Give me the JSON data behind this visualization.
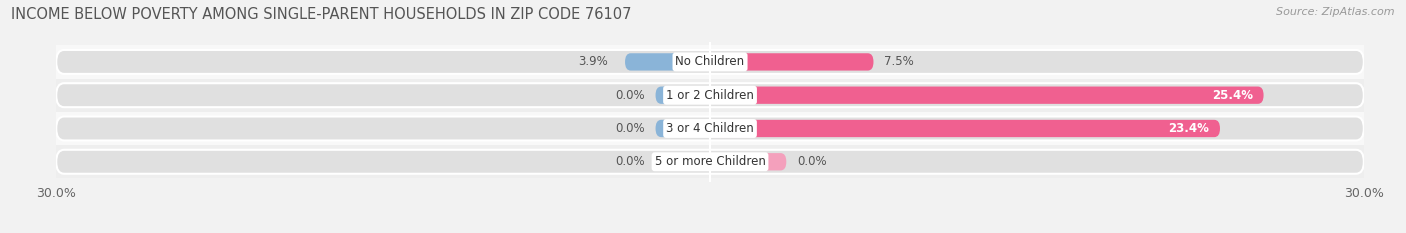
{
  "title": "INCOME BELOW POVERTY AMONG SINGLE-PARENT HOUSEHOLDS IN ZIP CODE 76107",
  "source": "Source: ZipAtlas.com",
  "categories": [
    "No Children",
    "1 or 2 Children",
    "3 or 4 Children",
    "5 or more Children"
  ],
  "single_father": [
    3.9,
    0.0,
    0.0,
    0.0
  ],
  "single_mother": [
    7.5,
    25.4,
    23.4,
    0.0
  ],
  "father_color": "#8ab4d8",
  "mother_color": "#f06090",
  "mother_color_light": "#f4a0bc",
  "bar_height": 0.52,
  "bg_bar_height": 0.72,
  "xlim": 30.0,
  "bg_color": "#f2f2f2",
  "bar_bg_color": "#e0e0e0",
  "row_bg_light": "#f8f8f8",
  "row_bg_dark": "#eeeeee",
  "title_fontsize": 10.5,
  "source_fontsize": 8,
  "label_fontsize": 8.5,
  "category_fontsize": 8.5,
  "axis_label_fontsize": 9,
  "father_stub": 2.5,
  "mother_stub_small": 3.5
}
